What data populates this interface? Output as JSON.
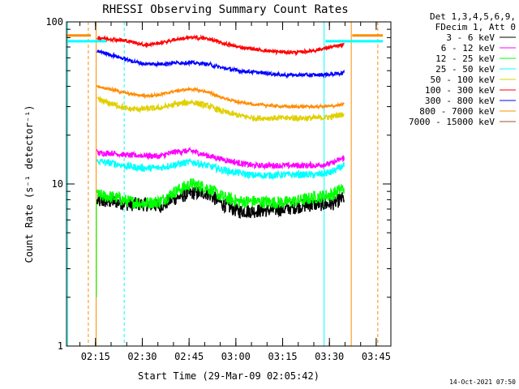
{
  "chart_data": {
    "type": "line",
    "title": "RHESSI Observing Summary Count Rates",
    "xlabel": "Start Time (29-Mar-09 02:05:42)",
    "ylabel": "Count Rate (s⁻¹ detector⁻¹)",
    "y_scale": "log",
    "ylim": [
      1,
      100
    ],
    "x_unit": "minutes after 02:05:42",
    "xlim": [
      0,
      104
    ],
    "y_ticks": [
      {
        "value": 1,
        "label": "1"
      },
      {
        "value": 10,
        "label": "10"
      },
      {
        "value": 100,
        "label": "100"
      }
    ],
    "x_ticks": [
      {
        "value": 9.3,
        "label": "02:15"
      },
      {
        "value": 24.3,
        "label": "02:30"
      },
      {
        "value": 39.3,
        "label": "02:45"
      },
      {
        "value": 54.3,
        "label": "03:00"
      },
      {
        "value": 69.3,
        "label": "03:15"
      },
      {
        "value": 84.3,
        "label": "03:30"
      },
      {
        "value": 99.3,
        "label": "03:45"
      }
    ],
    "legend_header": [
      "Det 1,3,4,5,6,9,",
      "FDecim 1, Att 0"
    ],
    "legend_position": "right",
    "series": [
      {
        "name": "3 - 6 keV",
        "color": "#000000",
        "noise": 0.1,
        "x": [
          10,
          15,
          20,
          25,
          30,
          35,
          40,
          45,
          50,
          55,
          60,
          65,
          70,
          75,
          80,
          85,
          89
        ],
        "y": [
          7.8,
          7.8,
          7.5,
          7.5,
          7.3,
          8.2,
          8.8,
          8.8,
          7.5,
          6.8,
          6.8,
          6.9,
          7.0,
          7.3,
          7.5,
          7.5,
          8.2
        ]
      },
      {
        "name": "6 - 12 keV",
        "color": "#ff00ff",
        "noise": 0.04,
        "x": [
          10,
          15,
          20,
          25,
          30,
          35,
          40,
          45,
          50,
          55,
          60,
          65,
          70,
          75,
          80,
          85,
          89
        ],
        "y": [
          15.5,
          15.5,
          15.0,
          15.0,
          14.8,
          15.8,
          16.0,
          15.0,
          14.2,
          13.5,
          13.0,
          13.0,
          13.0,
          13.0,
          13.0,
          13.4,
          14.5
        ]
      },
      {
        "name": "12 - 25 keV",
        "color": "#00ff00",
        "noise": 0.09,
        "x": [
          10,
          15,
          20,
          25,
          30,
          35,
          40,
          45,
          50,
          55,
          60,
          65,
          70,
          75,
          80,
          85,
          89
        ],
        "y": [
          8.5,
          8.3,
          7.8,
          7.6,
          7.8,
          9.0,
          10.0,
          9.5,
          8.3,
          7.8,
          7.8,
          7.7,
          7.7,
          7.9,
          8.3,
          8.6,
          9.5
        ]
      },
      {
        "name": "25 - 50 keV",
        "color": "#00ffff",
        "noise": 0.05,
        "x": [
          10,
          15,
          20,
          25,
          30,
          35,
          40,
          45,
          50,
          55,
          60,
          65,
          70,
          75,
          80,
          85,
          89
        ],
        "y": [
          13.8,
          13.4,
          12.8,
          12.5,
          12.6,
          13.2,
          13.7,
          13.0,
          12.2,
          11.7,
          11.3,
          11.3,
          11.4,
          11.4,
          11.4,
          11.8,
          13.0
        ]
      },
      {
        "name": "50 - 100 keV",
        "color": "#e0d000",
        "noise": 0.04,
        "x": [
          10,
          15,
          20,
          25,
          30,
          35,
          40,
          45,
          50,
          55,
          60,
          65,
          70,
          75,
          80,
          85,
          89
        ],
        "y": [
          33,
          31,
          29,
          29,
          29.5,
          31,
          32,
          30.5,
          28,
          26.5,
          25.5,
          25.5,
          25.5,
          25.5,
          25.5,
          26,
          27
        ]
      },
      {
        "name": "100 - 300 keV",
        "color": "#ff0000",
        "noise": 0.025,
        "x": [
          10,
          15,
          20,
          25,
          30,
          35,
          40,
          45,
          50,
          55,
          60,
          65,
          70,
          75,
          80,
          85,
          89
        ],
        "y": [
          80,
          78,
          76,
          72,
          74,
          78,
          80,
          79,
          74,
          70,
          68,
          66,
          65,
          65,
          67,
          70,
          72
        ]
      },
      {
        "name": "300 - 800 keV",
        "color": "#0000ff",
        "noise": 0.025,
        "x": [
          10,
          15,
          20,
          25,
          30,
          35,
          40,
          45,
          50,
          55,
          60,
          65,
          70,
          75,
          80,
          85,
          89
        ],
        "y": [
          66,
          62,
          58,
          55,
          55,
          56,
          56,
          55,
          52,
          50,
          49,
          48,
          47,
          47,
          47,
          47.5,
          48.5
        ]
      },
      {
        "name": "800 - 7000 keV",
        "color": "#ff8c00",
        "noise": 0.02,
        "x": [
          10,
          15,
          20,
          25,
          30,
          35,
          40,
          45,
          50,
          55,
          60,
          65,
          70,
          75,
          80,
          85,
          89
        ],
        "y": [
          40,
          38,
          36,
          35,
          35.5,
          37.5,
          38.5,
          37,
          34,
          32,
          31,
          30.5,
          30,
          30,
          30,
          30.2,
          31
        ]
      },
      {
        "name": "7000 - 15000 keV",
        "color": "#a0522d",
        "noise": 0.02,
        "x": [],
        "y": []
      }
    ]
  },
  "footer": "14-Oct-2021 07:50"
}
